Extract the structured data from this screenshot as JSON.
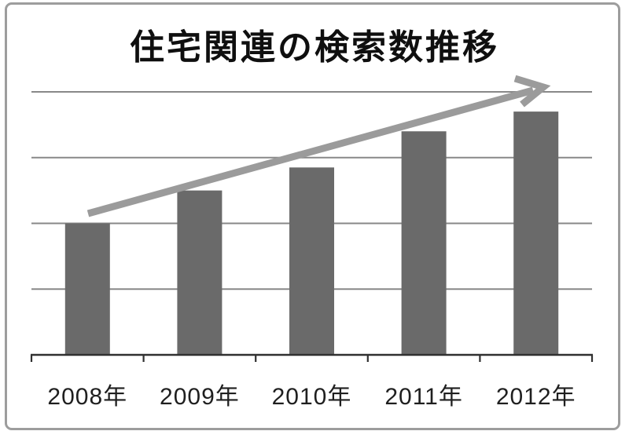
{
  "chart_data": {
    "type": "bar",
    "title": "住宅関連の検索数推移",
    "categories": [
      "2008年",
      "2009年",
      "2010年",
      "2011年",
      "2012年"
    ],
    "values": [
      2.0,
      2.5,
      2.85,
      3.4,
      3.7
    ],
    "value_note": "y-axis has no numeric tick labels; values expressed in gridline units (1 unit = one horizontal gridline spacing above the baseline)",
    "xlabel": "",
    "ylabel": "",
    "ylim": [
      0,
      5
    ],
    "gridlines": {
      "horizontal_count": 4,
      "visible": true,
      "vertical": false
    },
    "legend": "none",
    "annotations": [
      {
        "type": "arrow",
        "name": "upward-trend-arrow",
        "direction": "up-right",
        "from_category": "2008年",
        "to_category": "2012年"
      }
    ],
    "colors": {
      "bar": "#6a6a6a",
      "arrow": "#9b9b9b",
      "gridline": "#888888",
      "axis": "#303030",
      "frame_border": "#9d9d9d",
      "title_text": "#0f0f0f",
      "label_text": "#1f1f1f",
      "background": "#ffffff"
    }
  }
}
